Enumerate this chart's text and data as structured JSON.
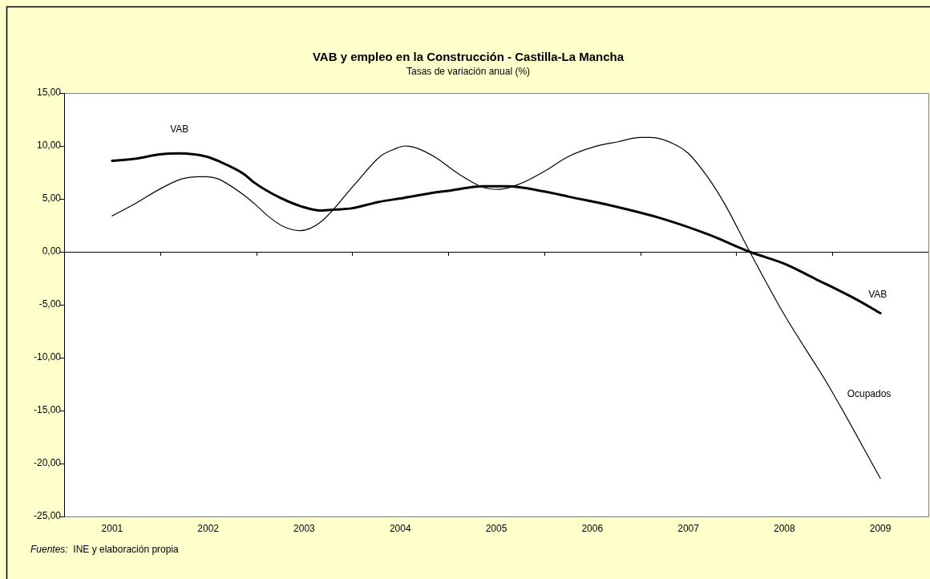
{
  "chart_data": {
    "type": "line",
    "title": "VAB y empleo en la Construcción - Castilla-La Mancha",
    "subtitle": "Tasas de variación anual (%)",
    "annotations": [
      "Fuentes:  INE y elaboración propia",
      "VAB"
    ],
    "xlim": [
      2000.5,
      2009.5
    ],
    "xticks": [
      {
        "value": 2000.5,
        "label": null
      },
      2001,
      {
        "value": 2001.5,
        "label": null
      },
      2002,
      {
        "value": 2002.5,
        "label": null
      },
      2003,
      {
        "value": 2003.5,
        "label": null
      },
      2004,
      {
        "value": 2004.5,
        "label": null
      },
      2005,
      {
        "value": 2005.5,
        "label": null
      },
      2006,
      {
        "value": 2006.5,
        "label": null
      },
      2007,
      {
        "value": 2007.5,
        "label": null
      },
      2008,
      {
        "value": 2008.5,
        "label": null
      },
      2009
    ],
    "ylim": [
      -25,
      15
    ],
    "yticks": [
      {
        "value": -25,
        "label": "-25,00"
      },
      {
        "value": -20,
        "label": "-20,00"
      },
      {
        "value": -15,
        "label": "-15,00"
      },
      {
        "value": -10,
        "label": "-10,00"
      },
      {
        "value": -5,
        "label": "-5,00"
      },
      {
        "value": 0,
        "label": "0,00"
      },
      {
        "value": 5,
        "label": "5,00"
      },
      {
        "value": 10,
        "label": "10,00"
      },
      {
        "value": 15,
        "label": "15,00"
      }
    ],
    "ref_lines": [
      {
        "axis": "y",
        "value": 0,
        "color": "#000000",
        "line_style": "solid"
      }
    ],
    "grid": false,
    "legend": false,
    "marker": "none",
    "line_style": "solid",
    "series": [
      {
        "name": "VAB",
        "color": "#000000",
        "x": [
          2001,
          2001.25,
          2001.49,
          2001.7,
          2001.98,
          2002.1,
          2002.38,
          2002.47,
          2002.75,
          2003,
          2003.17,
          2003.33,
          2003.49,
          2003.77,
          2004.04,
          2004.29,
          2004.53,
          2004.86,
          2005.12,
          2005.5,
          2005.76,
          2006.23,
          2006.74,
          2007.22,
          2007.64,
          2008.02,
          2008.31,
          2008.75,
          2009
        ],
        "values": [
          8.6,
          8.8,
          9.2,
          9.3,
          9.0,
          8.6,
          7.3,
          6.6,
          5.1,
          4.2,
          3.9,
          4.0,
          4.1,
          4.7,
          5.1,
          5.5,
          5.8,
          6.2,
          6.2,
          5.7,
          5.2,
          4.3,
          3.1,
          1.6,
          0.0,
          -1.2,
          -2.5,
          -4.5,
          -5.8
        ]
      },
      {
        "name": "Ocupados",
        "color": "#000000",
        "x": [
          2001,
          2001.25,
          2001.49,
          2001.73,
          2001.89,
          2001.98,
          2002.1,
          2002.38,
          2002.5,
          2002.62,
          2002.78,
          2002.96,
          2003.17,
          2003.51,
          2003.79,
          2003.94,
          2004.05,
          2004.17,
          2004.37,
          2004.6,
          2004.86,
          2005.03,
          2005.24,
          2005.5,
          2005.75,
          2006.01,
          2006.27,
          2006.5,
          2006.61,
          2006.87,
          2007,
          2007.19,
          2007.38,
          2007.64,
          2007.99,
          2008.47,
          2009
        ],
        "values": [
          3.4,
          4.6,
          5.9,
          6.9,
          7.1,
          7.1,
          6.9,
          5.3,
          4.4,
          3.4,
          2.4,
          2.0,
          2.8,
          6.2,
          9.0,
          9.7,
          10.0,
          9.8,
          8.9,
          7.4,
          6.1,
          5.9,
          6.4,
          7.6,
          9.0,
          9.9,
          10.4,
          10.8,
          10.8,
          10.1,
          9.3,
          7.2,
          4.5,
          0.0,
          -5.8,
          -12.8,
          -21.4
        ]
      }
    ]
  }
}
